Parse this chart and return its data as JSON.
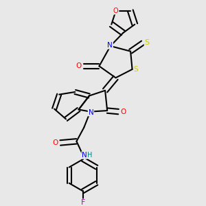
{
  "background_color": "#e8e8e8",
  "bond_color": "#000000",
  "atom_colors": {
    "N": "#0000ff",
    "O": "#ff0000",
    "S": "#cccc00",
    "F": "#bb00bb",
    "H": "#008080",
    "C": "#000000"
  },
  "figsize": [
    3.0,
    3.0
  ],
  "dpi": 100
}
